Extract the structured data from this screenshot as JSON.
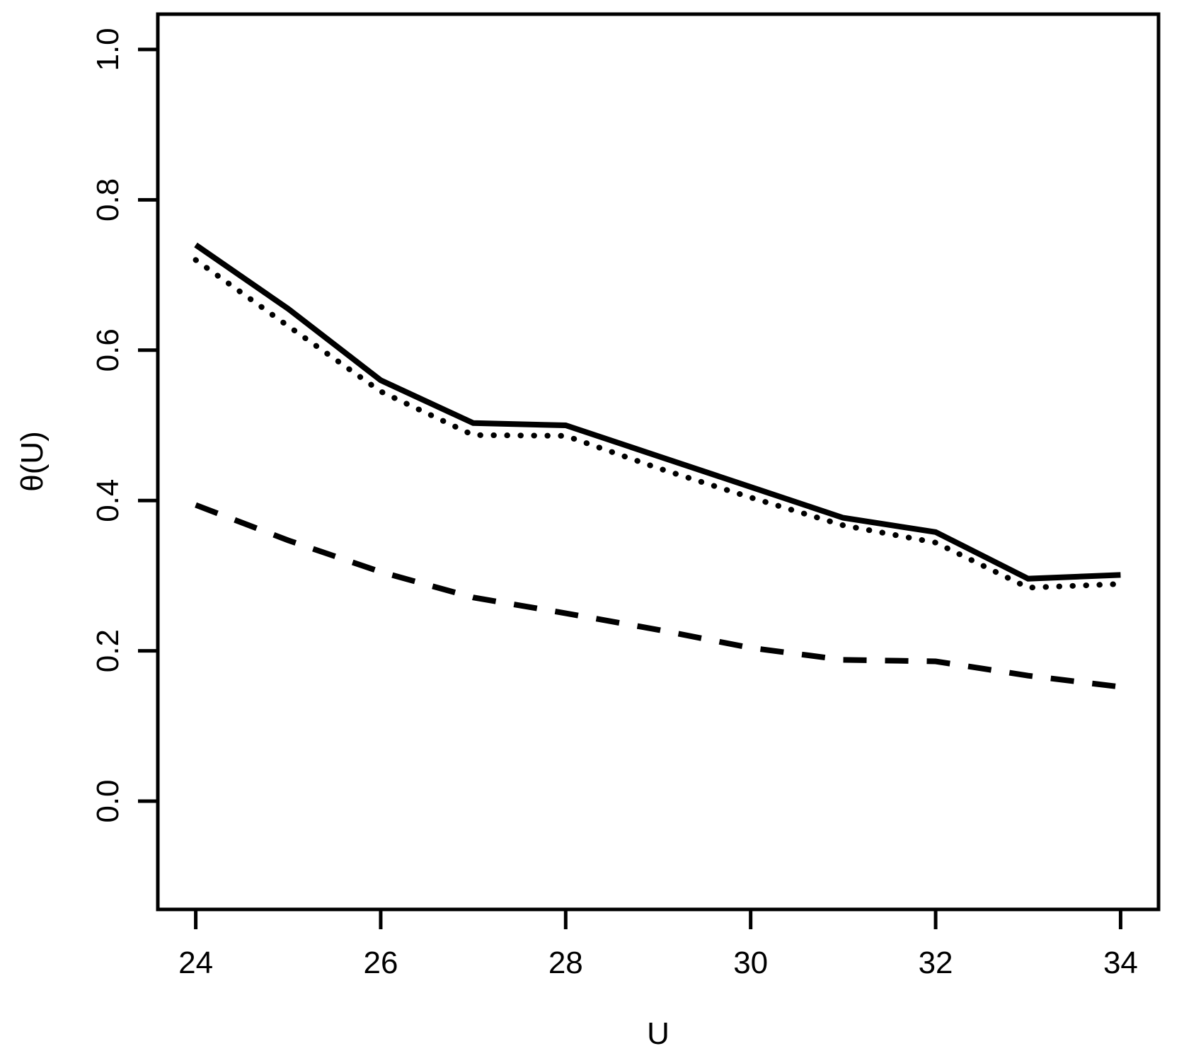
{
  "figure": {
    "background": "#ffffff",
    "foreground": "#000000"
  },
  "chart_data": {
    "type": "line",
    "title": "",
    "xlabel": "U",
    "ylabel": "θ(U)",
    "x": [
      24,
      25,
      26,
      27,
      28,
      29,
      30,
      31,
      32,
      33,
      34
    ],
    "series": [
      {
        "name": "solid-line",
        "style": "solid",
        "values": [
          0.74,
          0.655,
          0.56,
          0.503,
          0.5,
          0.459,
          0.418,
          0.377,
          0.358,
          0.296,
          0.301
        ]
      },
      {
        "name": "dotted-line",
        "style": "dotted",
        "values": [
          0.72,
          0.632,
          0.545,
          0.487,
          0.486,
          0.443,
          0.404,
          0.367,
          0.344,
          0.284,
          0.289
        ]
      },
      {
        "name": "dashed-line",
        "style": "dashed",
        "values": [
          0.394,
          0.347,
          0.305,
          0.271,
          0.25,
          0.228,
          0.204,
          0.188,
          0.186,
          0.167,
          0.152
        ]
      }
    ],
    "xticks": [
      24,
      26,
      28,
      30,
      32,
      34
    ],
    "xticklabels": [
      "24",
      "26",
      "28",
      "30",
      "32",
      "34"
    ],
    "yticks": [
      0.0,
      0.2,
      0.4,
      0.6,
      0.8,
      1.0
    ],
    "yticklabels": [
      "0.0",
      "0.2",
      "0.4",
      "0.6",
      "0.8",
      "1.0"
    ],
    "xlim": [
      23.59,
      34.41
    ],
    "ylim": [
      -0.144,
      1.047
    ],
    "grid": false,
    "legend": null,
    "line_color": "#000000"
  }
}
